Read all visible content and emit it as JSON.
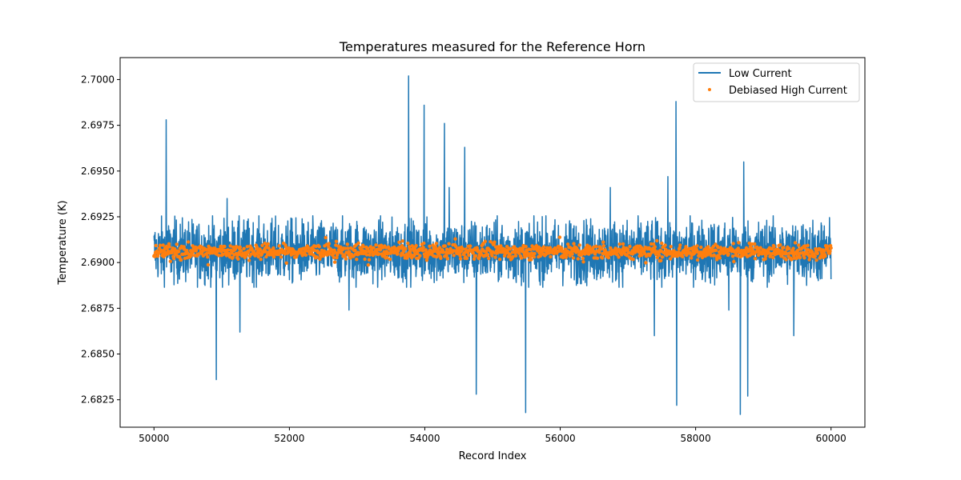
{
  "chart_data": {
    "type": "line",
    "title": "Temperatures measured for the Reference Horn",
    "xlabel": "Record Index",
    "ylabel": "Temperature (K)",
    "xlim": [
      49500,
      60500
    ],
    "ylim": [
      2.681,
      2.7012
    ],
    "x_ticks": [
      50000,
      52000,
      54000,
      56000,
      58000,
      60000
    ],
    "x_tick_labels": [
      "50000",
      "52000",
      "54000",
      "56000",
      "58000",
      "60000"
    ],
    "y_ticks": [
      2.6825,
      2.685,
      2.6875,
      2.69,
      2.6925,
      2.695,
      2.6975,
      2.7
    ],
    "y_tick_labels": [
      "2.6825",
      "2.6850",
      "2.6875",
      "2.6900",
      "2.6925",
      "2.6950",
      "2.6975",
      "2.7000"
    ],
    "legend_position": "top-right",
    "series": [
      {
        "name": "Low Current",
        "kind": "line",
        "color": "#1f77b4",
        "x_range": [
          50000,
          60000
        ],
        "baseline_mean": 2.6906,
        "baseline_spread": 0.0017,
        "spikes": [
          {
            "x": 50180,
            "y": 2.6978
          },
          {
            "x": 50920,
            "y": 2.6836
          },
          {
            "x": 51080,
            "y": 2.6935
          },
          {
            "x": 51270,
            "y": 2.6862
          },
          {
            "x": 52880,
            "y": 2.6874
          },
          {
            "x": 53760,
            "y": 2.7002
          },
          {
            "x": 53990,
            "y": 2.6986
          },
          {
            "x": 54290,
            "y": 2.6976
          },
          {
            "x": 54360,
            "y": 2.6941
          },
          {
            "x": 54590,
            "y": 2.6963
          },
          {
            "x": 54760,
            "y": 2.6828
          },
          {
            "x": 55490,
            "y": 2.6818
          },
          {
            "x": 56740,
            "y": 2.6941
          },
          {
            "x": 57390,
            "y": 2.686
          },
          {
            "x": 57590,
            "y": 2.6947
          },
          {
            "x": 57710,
            "y": 2.6988
          },
          {
            "x": 57720,
            "y": 2.6822
          },
          {
            "x": 58490,
            "y": 2.6874
          },
          {
            "x": 58660,
            "y": 2.6817
          },
          {
            "x": 58710,
            "y": 2.6955
          },
          {
            "x": 58770,
            "y": 2.6827
          },
          {
            "x": 59450,
            "y": 2.686
          }
        ]
      },
      {
        "name": "Debiased High Current",
        "kind": "scatter",
        "color": "#ff7f0e",
        "x_range": [
          50000,
          60000
        ],
        "baseline_mean": 2.6906,
        "baseline_spread": 0.0004
      }
    ]
  }
}
